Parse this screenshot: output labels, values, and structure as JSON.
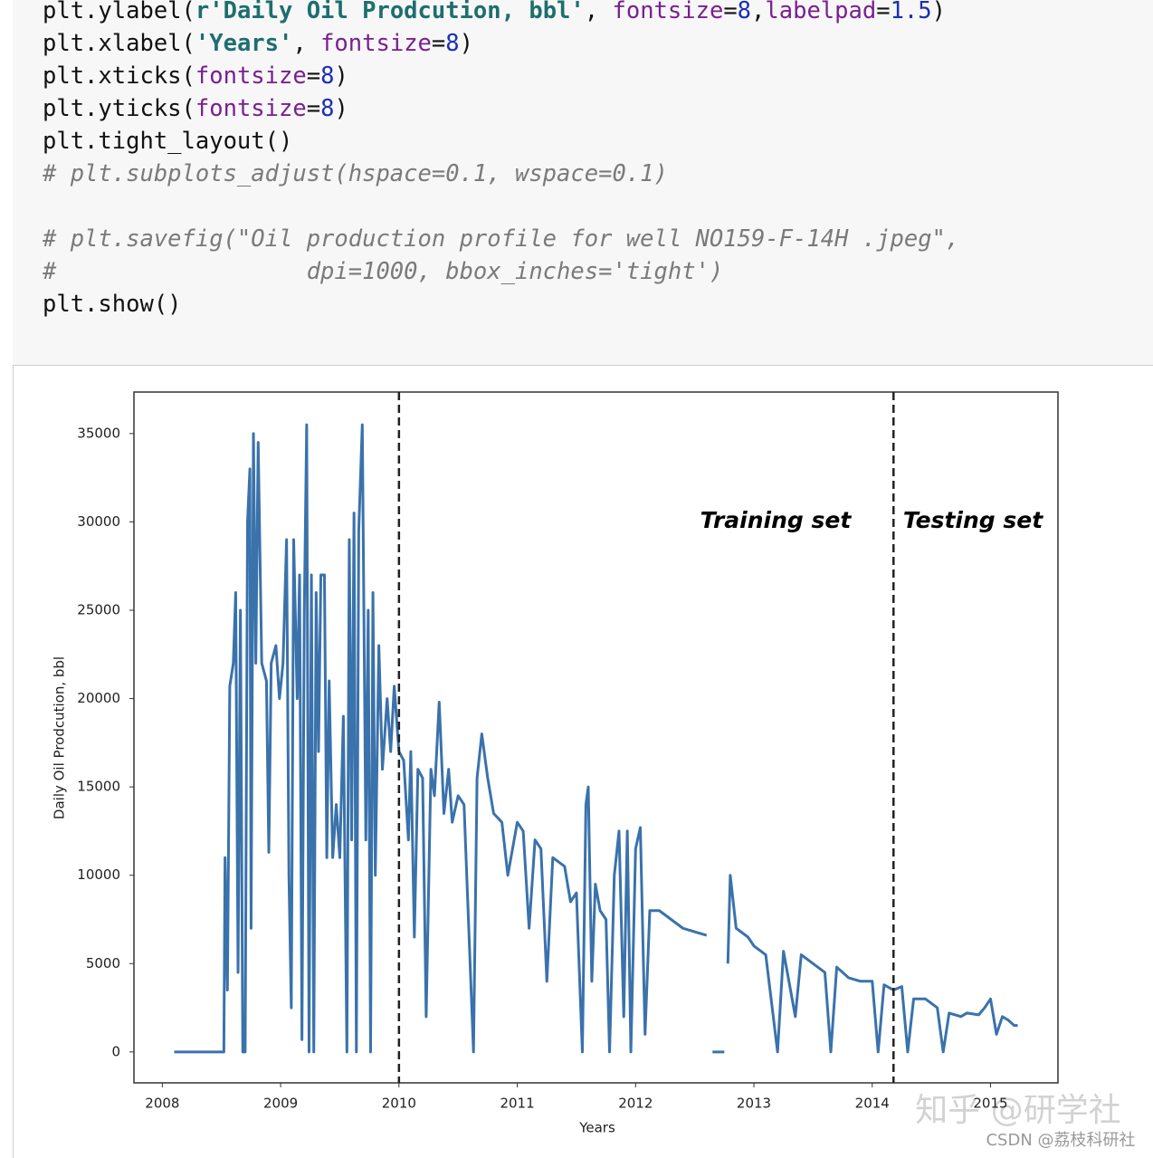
{
  "code": {
    "blocks": [
      [
        "plt.ylabel(r'Daily Oil Prodcution, bbl', fontsize=8,labelpad=1.5)",
        "plt.xlabel('Years', fontsize=8)",
        "plt.xticks(fontsize=8)",
        "plt.yticks(fontsize=8)",
        "plt.tight_layout()",
        "# plt.subplots_adjust(hspace=0.1, wspace=0.1)"
      ],
      [
        "# plt.savefig(\"Oil production profile for well NO159-F-14H .jpeg\",",
        "#                  dpi=1000, bbox_inches='tight')",
        "plt.show()"
      ]
    ]
  },
  "chart_data": {
    "type": "line",
    "x_label": "Years",
    "y_label": "Daily Oil Prodcution, bbl",
    "annotations": [
      "Training set",
      "Testing set"
    ],
    "vlines": [
      2010,
      2014.18
    ],
    "xlim": [
      2007.76,
      2015.57
    ],
    "ylim": [
      -1750,
      37350
    ],
    "xticks": [
      2008,
      2009,
      2010,
      2011,
      2012,
      2013,
      2014,
      2015
    ],
    "yticks": [
      0,
      5000,
      10000,
      15000,
      20000,
      25000,
      30000,
      35000
    ],
    "grid": false,
    "series": [
      {
        "color": "#3a72ab",
        "x": [
          2008.1,
          2008.3,
          2008.52,
          2008.53,
          2008.55,
          2008.57,
          2008.6,
          2008.62,
          2008.64,
          2008.66,
          2008.68,
          2008.7,
          2008.72,
          2008.74,
          2008.75,
          2008.77,
          2008.79,
          2008.81,
          2008.84,
          2008.88,
          2008.9,
          2008.92,
          2008.96,
          2008.99,
          2009.02,
          2009.05,
          2009.07,
          2009.09,
          2009.11,
          2009.14,
          2009.16,
          2009.18,
          2009.2,
          2009.22,
          2009.24,
          2009.26,
          2009.28,
          2009.3,
          2009.32,
          2009.34,
          2009.37,
          2009.39,
          2009.41,
          2009.44,
          2009.47,
          2009.5,
          2009.53,
          2009.56,
          2009.58,
          2009.6,
          2009.62,
          2009.64,
          2009.66,
          2009.69,
          2009.72,
          2009.74,
          2009.76,
          2009.78,
          2009.8,
          2009.83,
          2009.86,
          2009.9,
          2009.93,
          2009.96,
          2010.0,
          2010.04,
          2010.08,
          2010.1,
          2010.13,
          2010.16,
          2010.2,
          2010.23,
          2010.27,
          2010.3,
          2010.34,
          2010.38,
          2010.42,
          2010.45,
          2010.5,
          2010.55,
          2010.63,
          2010.66,
          2010.7,
          2010.75,
          2010.8,
          2010.87,
          2010.92,
          2011.0,
          2011.05,
          2011.1,
          2011.15,
          2011.2,
          2011.25,
          2011.3,
          2011.4,
          2011.45,
          2011.5,
          2011.55,
          2011.58,
          2011.6,
          2011.63,
          2011.66,
          2011.7,
          2011.75,
          2011.78,
          2011.82,
          2011.86,
          2011.9,
          2011.93,
          2011.96,
          2012.0,
          2012.04,
          2012.08,
          2012.12,
          2012.2,
          2012.3,
          2012.4,
          2012.5,
          2012.6,
          2012.62,
          2012.65,
          2012.75,
          2012.77,
          2012.78,
          2012.8,
          2012.85,
          2012.95,
          2013.0,
          2013.1,
          2013.2,
          2013.25,
          2013.35,
          2013.4,
          2013.5,
          2013.6,
          2013.65,
          2013.7,
          2013.8,
          2013.9,
          2014.0,
          2014.05,
          2014.1,
          2014.18,
          2014.25,
          2014.3,
          2014.35,
          2014.45,
          2014.55,
          2014.6,
          2014.65,
          2014.75,
          2014.8,
          2014.9,
          2014.95,
          2015.0,
          2015.05,
          2015.1,
          2015.15,
          2015.2,
          2015.23
        ],
        "values": [
          0,
          0,
          0,
          11000,
          3500,
          20700,
          22000,
          26000,
          4500,
          25000,
          0,
          0,
          30000,
          33000,
          7000,
          35000,
          22000,
          34500,
          22000,
          21000,
          11300,
          22000,
          23000,
          20000,
          22000,
          29000,
          10000,
          2500,
          29000,
          20000,
          27000,
          700,
          25000,
          35500,
          0,
          27000,
          0,
          26000,
          17000,
          27000,
          27000,
          11000,
          21000,
          11000,
          14000,
          11000,
          19000,
          0,
          29000,
          12000,
          30500,
          0,
          29500,
          35500,
          12000,
          25000,
          0,
          26000,
          10000,
          23000,
          16000,
          20000,
          17000,
          20700,
          17000,
          16500,
          12000,
          17000,
          6500,
          16000,
          15500,
          2000,
          16000,
          14500,
          19800,
          13500,
          16000,
          13000,
          14500,
          14000,
          0,
          15500,
          18000,
          15500,
          13500,
          13000,
          10000,
          13000,
          12500,
          7000,
          12000,
          11500,
          4000,
          11000,
          10500,
          8500,
          9000,
          0,
          14000,
          15000,
          4000,
          9500,
          8000,
          7500,
          0,
          10000,
          12500,
          2000,
          12500,
          0,
          11500,
          12700,
          1000,
          8000,
          8000,
          7500,
          7000,
          6800,
          6600,
          null,
          0,
          0,
          null,
          5000,
          10000,
          7000,
          6500,
          6000,
          5500,
          0,
          5700,
          2000,
          5500,
          5000,
          4500,
          0,
          4800,
          4200,
          4000,
          4000,
          0,
          3800,
          3500,
          3700,
          0,
          3000,
          3000,
          2500,
          0,
          2200,
          2000,
          2200,
          2100,
          2500,
          3000,
          1000,
          2000,
          1800,
          1500,
          1500
        ]
      }
    ]
  },
  "watermarks": [
    "知乎 @研学社",
    "CSDN @荔枝科研社"
  ]
}
